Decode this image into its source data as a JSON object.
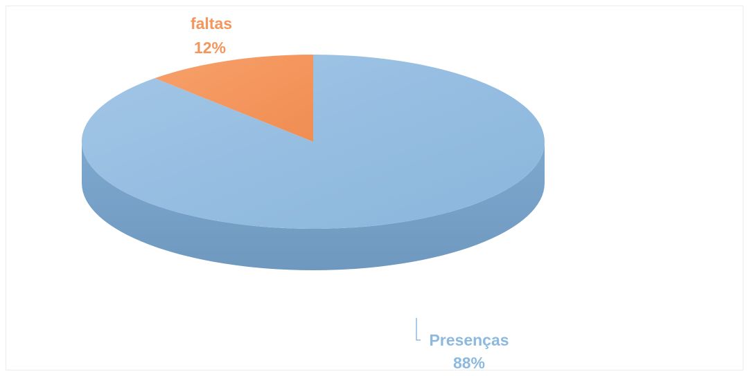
{
  "chart_data": {
    "type": "pie",
    "style": "3d",
    "categories": [
      "faltas",
      "Presenças"
    ],
    "values": [
      12,
      88
    ],
    "value_labels": [
      "12%",
      "88%"
    ],
    "colors": {
      "faltas": "#f4955c",
      "Presenças": "#8db9df"
    },
    "title": "",
    "legend": "none"
  }
}
